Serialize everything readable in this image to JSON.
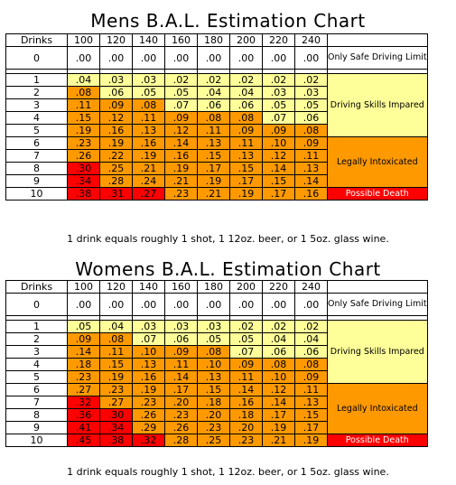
{
  "mens": {
    "title": "Mens B.A.L. Estimation Chart",
    "header": [
      "Drinks",
      "100",
      "120",
      "140",
      "160",
      "180",
      "200",
      "220",
      "240"
    ],
    "zero_row": [
      "0",
      ".00",
      ".00",
      ".00",
      ".00",
      ".00",
      ".00",
      ".00",
      ".00"
    ],
    "rows": [
      {
        "drinks": "1",
        "values": [
          ".04",
          ".03",
          ".03",
          ".02",
          ".02",
          ".02",
          ".02",
          ".02"
        ],
        "levels": [
          "y",
          "y",
          "y",
          "y",
          "y",
          "y",
          "y",
          "y"
        ]
      },
      {
        "drinks": "2",
        "values": [
          ".08",
          ".06",
          ".05",
          ".05",
          ".04",
          ".04",
          ".03",
          ".03"
        ],
        "levels": [
          "o",
          "y",
          "y",
          "y",
          "y",
          "y",
          "y",
          "y"
        ]
      },
      {
        "drinks": "3",
        "values": [
          ".11",
          ".09",
          ".08",
          ".07",
          ".06",
          ".06",
          ".05",
          ".05"
        ],
        "levels": [
          "o",
          "o",
          "o",
          "y",
          "y",
          "y",
          "y",
          "y"
        ]
      },
      {
        "drinks": "4",
        "values": [
          ".15",
          ".12",
          ".11",
          ".09",
          ".08",
          ".08",
          ".07",
          ".06"
        ],
        "levels": [
          "o",
          "o",
          "o",
          "o",
          "o",
          "o",
          "y",
          "y"
        ]
      },
      {
        "drinks": "5",
        "values": [
          ".19",
          ".16",
          ".13",
          ".12",
          ".11",
          ".09",
          ".09",
          ".08"
        ],
        "levels": [
          "o",
          "o",
          "o",
          "o",
          "o",
          "o",
          "o",
          "o"
        ]
      },
      {
        "drinks": "6",
        "values": [
          ".23",
          ".19",
          ".16",
          ".14",
          ".13",
          ".11",
          ".10",
          ".09"
        ],
        "levels": [
          "o",
          "o",
          "o",
          "o",
          "o",
          "o",
          "o",
          "o"
        ]
      },
      {
        "drinks": "7",
        "values": [
          ".26",
          ".22",
          ".19",
          ".16",
          ".15",
          ".13",
          ".12",
          ".11"
        ],
        "levels": [
          "o",
          "o",
          "o",
          "o",
          "o",
          "o",
          "o",
          "o"
        ]
      },
      {
        "drinks": "8",
        "values": [
          ".30",
          ".25",
          ".21",
          ".19",
          ".17",
          ".15",
          ".14",
          ".13"
        ],
        "levels": [
          "r",
          "o",
          "o",
          "o",
          "o",
          "o",
          "o",
          "o"
        ]
      },
      {
        "drinks": "9",
        "values": [
          ".34",
          ".28",
          ".24",
          ".21",
          ".19",
          ".17",
          ".15",
          ".14"
        ],
        "levels": [
          "r",
          "o",
          "o",
          "o",
          "o",
          "o",
          "o",
          "o"
        ]
      },
      {
        "drinks": "10",
        "values": [
          ".38",
          ".31",
          ".27",
          ".23",
          ".21",
          ".19",
          ".17",
          ".16"
        ],
        "levels": [
          "r",
          "r",
          "r",
          "o",
          "o",
          "o",
          "o",
          "o"
        ]
      }
    ],
    "zones": {
      "safe": "Only Safe Driving Limit",
      "impaired": "Driving Skills Impared",
      "intoxicated": "Legally Intoxicated",
      "death": "Possible Death"
    },
    "note": "1 drink equals roughly 1 shot, 1 12oz. beer, or 1 5oz. glass wine."
  },
  "womens": {
    "title": "Womens B.A.L. Estimation Chart",
    "header": [
      "Drinks",
      "100",
      "120",
      "140",
      "160",
      "180",
      "200",
      "220",
      "240"
    ],
    "zero_row": [
      "0",
      ".00",
      ".00",
      ".00",
      ".00",
      ".00",
      ".00",
      ".00",
      ".00"
    ],
    "rows": [
      {
        "drinks": "1",
        "values": [
          ".05",
          ".04",
          ".03",
          ".03",
          ".03",
          ".02",
          ".02",
          ".02"
        ],
        "levels": [
          "y",
          "y",
          "y",
          "y",
          "y",
          "y",
          "y",
          "y"
        ]
      },
      {
        "drinks": "2",
        "values": [
          ".09",
          ".08",
          ".07",
          ".06",
          ".05",
          ".05",
          ".04",
          ".04"
        ],
        "levels": [
          "o",
          "o",
          "y",
          "y",
          "y",
          "y",
          "y",
          "y"
        ]
      },
      {
        "drinks": "3",
        "values": [
          ".14",
          ".11",
          ".10",
          ".09",
          ".08",
          ".07",
          ".06",
          ".06"
        ],
        "levels": [
          "o",
          "o",
          "o",
          "o",
          "o",
          "y",
          "y",
          "y"
        ]
      },
      {
        "drinks": "4",
        "values": [
          ".18",
          ".15",
          ".13",
          ".11",
          ".10",
          ".09",
          ".08",
          ".08"
        ],
        "levels": [
          "o",
          "o",
          "o",
          "o",
          "o",
          "o",
          "o",
          "o"
        ]
      },
      {
        "drinks": "5",
        "values": [
          ".23",
          ".19",
          ".16",
          ".14",
          ".13",
          ".11",
          ".10",
          ".09"
        ],
        "levels": [
          "o",
          "o",
          "o",
          "o",
          "o",
          "o",
          "o",
          "o"
        ]
      },
      {
        "drinks": "6",
        "values": [
          ".27",
          ".23",
          ".19",
          ".17",
          ".15",
          ".14",
          ".12",
          ".11"
        ],
        "levels": [
          "o",
          "o",
          "o",
          "o",
          "o",
          "o",
          "o",
          "o"
        ]
      },
      {
        "drinks": "7",
        "values": [
          ".32",
          ".27",
          ".23",
          ".20",
          ".18",
          ".16",
          ".14",
          ".13"
        ],
        "levels": [
          "r",
          "o",
          "o",
          "o",
          "o",
          "o",
          "o",
          "o"
        ]
      },
      {
        "drinks": "8",
        "values": [
          ".36",
          ".30",
          ".26",
          ".23",
          ".20",
          ".18",
          ".17",
          ".15"
        ],
        "levels": [
          "r",
          "r",
          "o",
          "o",
          "o",
          "o",
          "o",
          "o"
        ]
      },
      {
        "drinks": "9",
        "values": [
          ".41",
          ".34",
          ".29",
          ".26",
          ".23",
          ".20",
          ".19",
          ".17"
        ],
        "levels": [
          "r",
          "r",
          "o",
          "o",
          "o",
          "o",
          "o",
          "o"
        ]
      },
      {
        "drinks": "10",
        "values": [
          ".45",
          ".38",
          ".32",
          ".28",
          ".25",
          ".23",
          ".21",
          ".19"
        ],
        "levels": [
          "r",
          "r",
          "r",
          "o",
          "o",
          "o",
          "o",
          "o"
        ]
      }
    ],
    "zones": {
      "safe": "Only Safe Driving Limit",
      "impaired": "Driving Skills Impared",
      "intoxicated": "Legally Intoxicated",
      "death": "Possible Death"
    },
    "note": "1 drink equals roughly 1 shot, 1 12oz. beer, or 1 5oz. glass wine."
  },
  "colors": {
    "safe": "#ffff99",
    "intoxicated": "#ff9900",
    "death": "#ff0000"
  }
}
